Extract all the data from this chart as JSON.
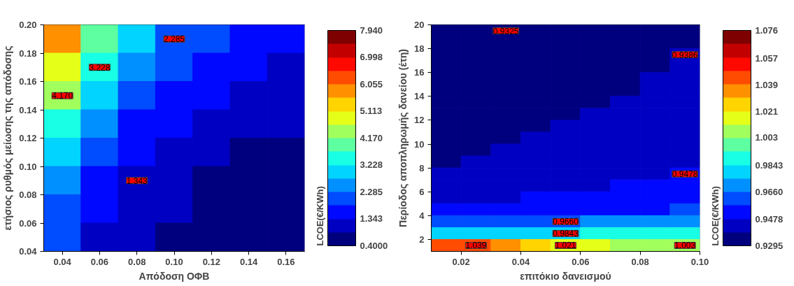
{
  "chart_data": [
    {
      "type": "heatmap",
      "xlabel": "Απόδοση ΟΦΒ",
      "ylabel": "ετήσιος ρυθμός μείωσης της απόδοσης",
      "clabel": "LCOE(€/KWh)",
      "x": [
        0.04,
        0.06,
        0.08,
        0.1,
        0.12,
        0.14,
        0.16
      ],
      "y": [
        0.19,
        0.17,
        0.15,
        0.13,
        0.11,
        0.09,
        0.07,
        0.05
      ],
      "xlim": [
        0.03,
        0.17
      ],
      "ylim": [
        0.04,
        0.2
      ],
      "xticks": [
        0.04,
        0.06,
        0.08,
        {
          "value": 0.1,
          "label": "0.10"
        },
        0.12,
        0.14,
        0.16
      ],
      "yticks": [
        0.04,
        0.06,
        0.08,
        {
          "value": 0.1,
          "label": "0.10"
        },
        0.12,
        0.14,
        0.16,
        0.18,
        {
          "value": 0.2,
          "label": "0.20"
        }
      ],
      "clim": [
        0.4,
        7.94
      ],
      "cticks": [
        {
          "value": 0.4,
          "label": "0.4000"
        },
        1.343,
        2.285,
        3.228,
        {
          "value": 4.17,
          "label": "4.170"
        },
        5.113,
        6.055,
        6.998,
        {
          "value": 7.94,
          "label": "7.940"
        }
      ],
      "cells": [
        [
          5.6,
          3.75,
          2.8,
          2.25,
          1.9,
          1.6,
          1.4
        ],
        [
          4.9,
          3.25,
          2.4,
          1.95,
          1.6,
          1.4,
          1.2
        ],
        [
          4.25,
          2.8,
          2.1,
          1.7,
          1.4,
          1.2,
          1.05
        ],
        [
          3.6,
          2.4,
          1.8,
          1.45,
          1.2,
          1.05,
          0.9
        ],
        [
          3.0,
          2.0,
          1.5,
          1.2,
          1.0,
          0.85,
          0.75
        ],
        [
          2.6,
          1.7,
          1.3,
          1.0,
          0.85,
          0.75,
          0.65
        ],
        [
          2.2,
          1.45,
          1.1,
          0.9,
          0.75,
          0.65,
          0.55
        ],
        [
          1.9,
          1.25,
          0.95,
          0.75,
          0.65,
          0.55,
          0.45
        ]
      ],
      "annotations": [
        "4.170",
        "2.285",
        "1.343",
        "3.228"
      ]
    },
    {
      "type": "heatmap",
      "xlabel": "επιτόκιο δανεισμού",
      "ylabel": "Περίοδος αποπληρωμής δανείου (έτη)",
      "clabel": "LCOE(€/KWh)",
      "x": [
        0.015,
        0.025,
        0.035,
        0.045,
        0.055,
        0.065,
        0.075,
        0.085,
        0.095
      ],
      "y": [
        19.5,
        18.5,
        17.5,
        16.5,
        15.5,
        14.5,
        13.5,
        12.5,
        11.5,
        10.5,
        9.5,
        8.5,
        7.5,
        6.5,
        5.5,
        4.5,
        3.5,
        2.5,
        1.5
      ],
      "xlim": [
        0.01,
        0.1
      ],
      "ylim": [
        1,
        20
      ],
      "xticks": [
        0.02,
        0.04,
        0.06,
        0.08,
        {
          "value": 0.1,
          "label": "0.10"
        }
      ],
      "yticks": [
        2,
        4,
        6,
        8,
        10,
        12,
        14,
        16,
        18,
        20
      ],
      "clim": [
        0.9295,
        1.076
      ],
      "cticks": [
        0.9295,
        0.9478,
        {
          "value": 0.966,
          "label": "0.9660"
        },
        0.9843,
        1.003,
        1.021,
        1.039,
        1.057,
        1.076
      ],
      "cells": [
        [
          0.93,
          0.931,
          0.932,
          0.933,
          0.934,
          0.935,
          0.936,
          0.937,
          0.938
        ],
        [
          0.93,
          0.931,
          0.932,
          0.933,
          0.934,
          0.935,
          0.936,
          0.937,
          0.938
        ],
        [
          0.931,
          0.932,
          0.933,
          0.934,
          0.935,
          0.936,
          0.937,
          0.938,
          0.939
        ],
        [
          0.931,
          0.932,
          0.933,
          0.934,
          0.935,
          0.936,
          0.937,
          0.938,
          0.939
        ],
        [
          0.932,
          0.933,
          0.934,
          0.935,
          0.936,
          0.937,
          0.938,
          0.939,
          0.94
        ],
        [
          0.932,
          0.933,
          0.934,
          0.935,
          0.936,
          0.937,
          0.938,
          0.939,
          0.94
        ],
        [
          0.933,
          0.934,
          0.935,
          0.936,
          0.937,
          0.938,
          0.939,
          0.94,
          0.941
        ],
        [
          0.934,
          0.935,
          0.936,
          0.937,
          0.938,
          0.939,
          0.94,
          0.941,
          0.942
        ],
        [
          0.935,
          0.936,
          0.937,
          0.938,
          0.939,
          0.94,
          0.941,
          0.942,
          0.943
        ],
        [
          0.936,
          0.937,
          0.938,
          0.939,
          0.94,
          0.941,
          0.942,
          0.943,
          0.944
        ],
        [
          0.937,
          0.938,
          0.939,
          0.94,
          0.941,
          0.942,
          0.943,
          0.944,
          0.945
        ],
        [
          0.938,
          0.939,
          0.94,
          0.941,
          0.942,
          0.943,
          0.944,
          0.945,
          0.946
        ],
        [
          0.94,
          0.941,
          0.942,
          0.943,
          0.944,
          0.945,
          0.946,
          0.947,
          0.948
        ],
        [
          0.942,
          0.943,
          0.944,
          0.945,
          0.946,
          0.947,
          0.948,
          0.949,
          0.95
        ],
        [
          0.945,
          0.946,
          0.947,
          0.948,
          0.949,
          0.95,
          0.951,
          0.952,
          0.953
        ],
        [
          0.949,
          0.95,
          0.951,
          0.952,
          0.953,
          0.954,
          0.955,
          0.956,
          0.957
        ],
        [
          0.962,
          0.963,
          0.964,
          0.965,
          0.966,
          0.967,
          0.968,
          0.969,
          0.97
        ],
        [
          0.98,
          0.981,
          0.982,
          0.983,
          0.984,
          0.985,
          0.986,
          0.987,
          0.988
        ],
        [
          1.045,
          1.04,
          1.033,
          1.027,
          1.021,
          1.016,
          1.011,
          1.007,
          1.003
        ]
      ],
      "annotations": [
        "0.9325",
        "0.9386",
        "0.9478",
        "0.9660",
        "0.9843",
        "1.021",
        "1.003",
        "1.039"
      ]
    }
  ]
}
